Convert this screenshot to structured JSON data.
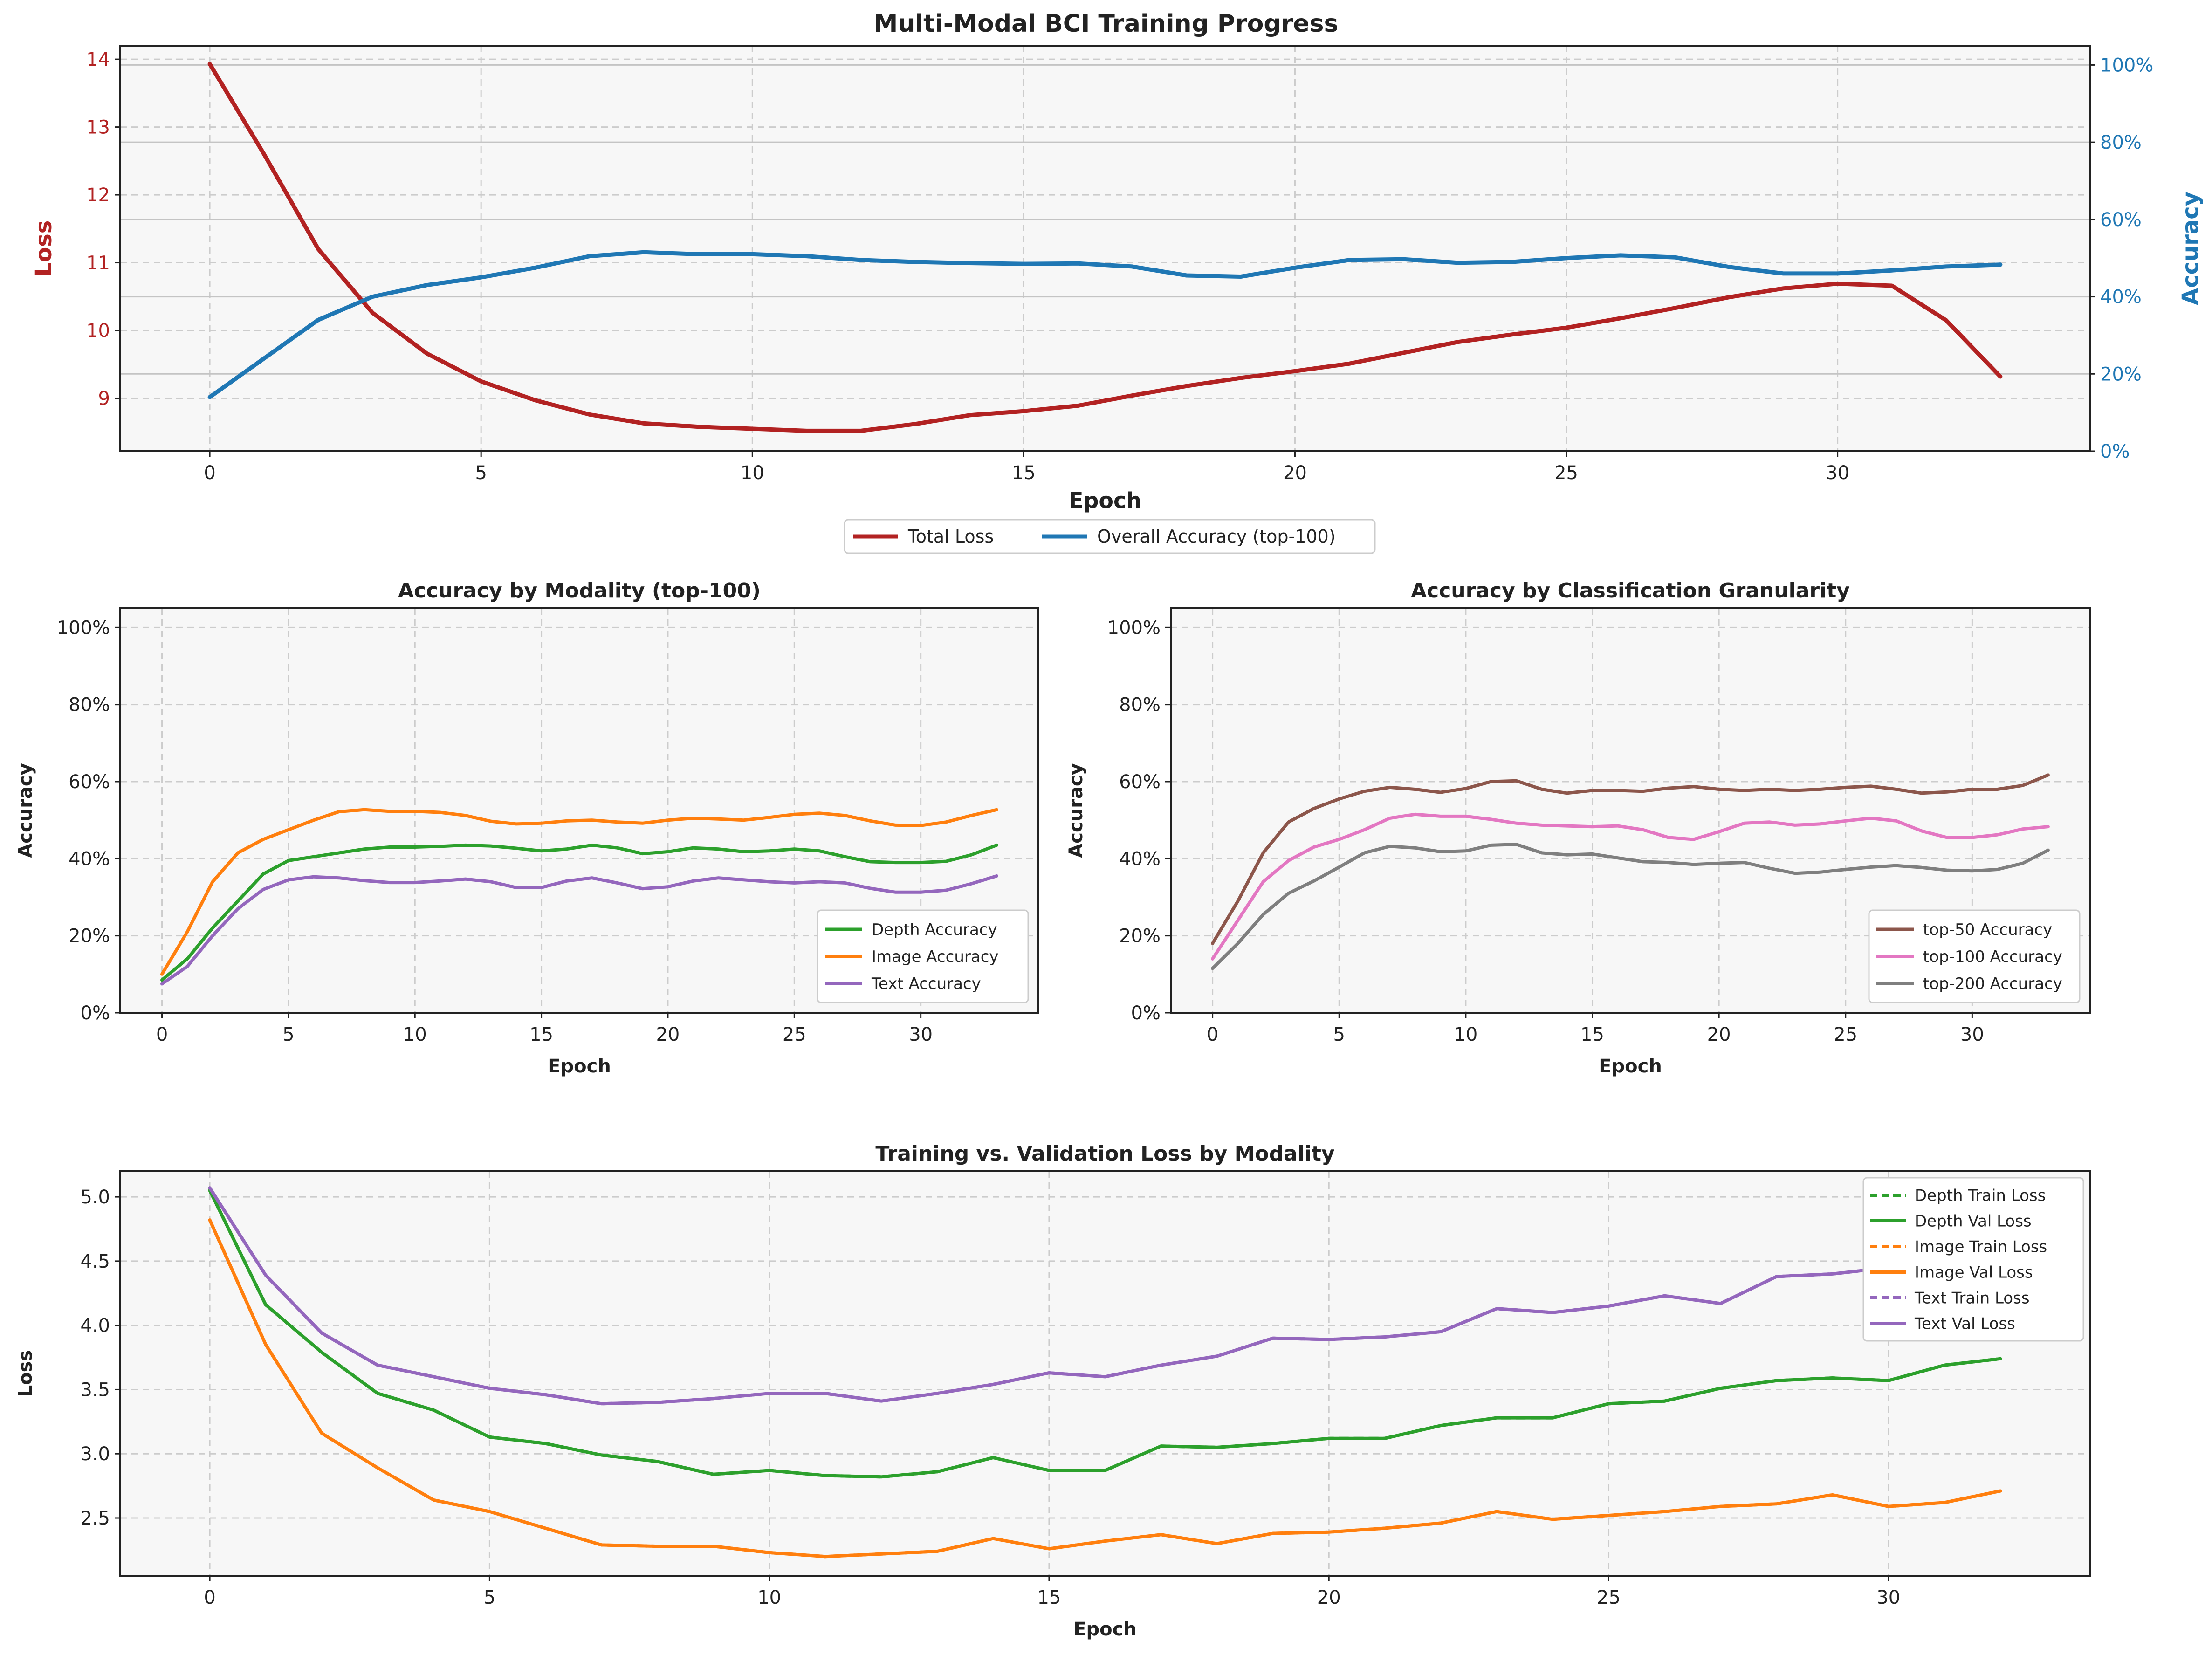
{
  "figure_title": "Multi-Modal BCI Training Progress",
  "colors": {
    "loss": "#b22222",
    "accuracy": "#1f77b4",
    "depth": "#2ca02c",
    "image": "#ff7f0e",
    "text": "#9467bd",
    "top50": "#8c564b",
    "top100": "#e377c2",
    "top200": "#7f7f7f",
    "panel_bg": "#f7f7f7",
    "grid": "#cccccc"
  },
  "chart_data": [
    {
      "type": "line",
      "title": "Multi-Modal BCI Training Progress",
      "xlabel": "Epoch",
      "ylabel_left": "Loss",
      "ylabel_right": "Accuracy",
      "xlim": [
        -1.65,
        34.65
      ],
      "ylim_left": [
        8.22,
        14.2
      ],
      "ylim_right": [
        0,
        1.05
      ],
      "x_ticks": [
        "0",
        "5",
        "10",
        "15",
        "20",
        "25",
        "30"
      ],
      "y_ticks_left": [
        "9",
        "10",
        "11",
        "12",
        "13",
        "14"
      ],
      "y_ticks_right": [
        "0%",
        "20%",
        "40%",
        "60%",
        "80%",
        "100%"
      ],
      "grid": true,
      "legend_position": "below-center",
      "legend_columns": 2,
      "x": [
        0,
        1,
        2,
        3,
        4,
        5,
        6,
        7,
        8,
        9,
        10,
        11,
        12,
        13,
        14,
        15,
        16,
        17,
        18,
        19,
        20,
        21,
        22,
        23,
        24,
        25,
        26,
        27,
        28,
        29,
        30,
        31,
        32,
        33
      ],
      "series": [
        {
          "name": "Total Loss",
          "axis": "left",
          "color": "#b22222",
          "values": [
            13.93,
            12.6,
            11.2,
            10.26,
            9.66,
            9.25,
            8.97,
            8.76,
            8.63,
            8.58,
            8.55,
            8.52,
            8.52,
            8.62,
            8.75,
            8.81,
            8.89,
            9.04,
            9.18,
            9.3,
            9.4,
            9.51,
            9.67,
            9.83,
            9.94,
            10.04,
            10.18,
            10.33,
            10.49,
            10.62,
            10.69,
            10.66,
            10.15,
            9.32
          ]
        },
        {
          "name": "Overall Accuracy (top-100)",
          "axis": "right",
          "color": "#1f77b4",
          "values": [
            0.14,
            0.24,
            0.34,
            0.4,
            0.43,
            0.45,
            0.475,
            0.505,
            0.515,
            0.51,
            0.51,
            0.505,
            0.495,
            0.49,
            0.487,
            0.485,
            0.486,
            0.478,
            0.455,
            0.452,
            0.475,
            0.495,
            0.497,
            0.488,
            0.49,
            0.5,
            0.507,
            0.502,
            0.477,
            0.46,
            0.46,
            0.468,
            0.478,
            0.483
          ]
        }
      ]
    },
    {
      "type": "line",
      "title": "Accuracy by Modality (top-100)",
      "xlabel": "Epoch",
      "ylabel": "Accuracy",
      "xlim": [
        -1.65,
        34.65
      ],
      "ylim": [
        0,
        1.05
      ],
      "x_ticks": [
        "0",
        "5",
        "10",
        "15",
        "20",
        "25",
        "30"
      ],
      "y_ticks": [
        "0%",
        "20%",
        "40%",
        "60%",
        "80%",
        "100%"
      ],
      "grid": true,
      "legend_position": "lower-right",
      "x": [
        0,
        1,
        2,
        3,
        4,
        5,
        6,
        7,
        8,
        9,
        10,
        11,
        12,
        13,
        14,
        15,
        16,
        17,
        18,
        19,
        20,
        21,
        22,
        23,
        24,
        25,
        26,
        27,
        28,
        29,
        30,
        31,
        32,
        33
      ],
      "series": [
        {
          "name": "Depth Accuracy",
          "color": "#2ca02c",
          "values": [
            0.085,
            0.14,
            0.22,
            0.29,
            0.36,
            0.395,
            0.405,
            0.415,
            0.425,
            0.43,
            0.43,
            0.432,
            0.435,
            0.433,
            0.427,
            0.42,
            0.425,
            0.435,
            0.428,
            0.413,
            0.418,
            0.428,
            0.425,
            0.418,
            0.42,
            0.425,
            0.42,
            0.405,
            0.392,
            0.39,
            0.39,
            0.393,
            0.41,
            0.435
          ]
        },
        {
          "name": "Image Accuracy",
          "color": "#ff7f0e",
          "values": [
            0.1,
            0.21,
            0.34,
            0.415,
            0.45,
            0.475,
            0.5,
            0.522,
            0.527,
            0.523,
            0.523,
            0.52,
            0.512,
            0.497,
            0.49,
            0.492,
            0.498,
            0.5,
            0.495,
            0.492,
            0.5,
            0.505,
            0.503,
            0.5,
            0.507,
            0.515,
            0.518,
            0.512,
            0.498,
            0.487,
            0.486,
            0.495,
            0.512,
            0.527
          ]
        },
        {
          "name": "Text Accuracy",
          "color": "#9467bd",
          "values": [
            0.075,
            0.12,
            0.2,
            0.27,
            0.32,
            0.345,
            0.353,
            0.35,
            0.343,
            0.338,
            0.338,
            0.342,
            0.347,
            0.34,
            0.325,
            0.325,
            0.342,
            0.35,
            0.337,
            0.322,
            0.327,
            0.342,
            0.35,
            0.345,
            0.34,
            0.337,
            0.34,
            0.337,
            0.323,
            0.313,
            0.313,
            0.318,
            0.335,
            0.355
          ]
        }
      ]
    },
    {
      "type": "line",
      "title": "Accuracy by Classification Granularity",
      "xlabel": "Epoch",
      "ylabel": "Accuracy",
      "xlim": [
        -1.65,
        34.65
      ],
      "ylim": [
        0,
        1.05
      ],
      "x_ticks": [
        "0",
        "5",
        "10",
        "15",
        "20",
        "25",
        "30"
      ],
      "y_ticks": [
        "0%",
        "20%",
        "40%",
        "60%",
        "80%",
        "100%"
      ],
      "grid": true,
      "legend_position": "lower-right",
      "x": [
        0,
        1,
        2,
        3,
        4,
        5,
        6,
        7,
        8,
        9,
        10,
        11,
        12,
        13,
        14,
        15,
        16,
        17,
        18,
        19,
        20,
        21,
        22,
        23,
        24,
        25,
        26,
        27,
        28,
        29,
        30,
        31,
        32,
        33
      ],
      "series": [
        {
          "name": "top-50 Accuracy",
          "color": "#8c564b",
          "values": [
            0.18,
            0.29,
            0.415,
            0.495,
            0.53,
            0.555,
            0.575,
            0.585,
            0.58,
            0.572,
            0.582,
            0.6,
            0.602,
            0.58,
            0.57,
            0.577,
            0.577,
            0.575,
            0.583,
            0.587,
            0.58,
            0.577,
            0.58,
            0.577,
            0.58,
            0.585,
            0.588,
            0.58,
            0.57,
            0.573,
            0.58,
            0.58,
            0.59,
            0.617
          ]
        },
        {
          "name": "top-100 Accuracy",
          "color": "#e377c2",
          "values": [
            0.14,
            0.24,
            0.34,
            0.395,
            0.43,
            0.45,
            0.475,
            0.505,
            0.515,
            0.51,
            0.51,
            0.502,
            0.492,
            0.487,
            0.485,
            0.483,
            0.485,
            0.475,
            0.455,
            0.45,
            0.47,
            0.492,
            0.495,
            0.487,
            0.49,
            0.498,
            0.505,
            0.498,
            0.472,
            0.455,
            0.455,
            0.462,
            0.477,
            0.483
          ]
        },
        {
          "name": "top-200 Accuracy",
          "color": "#7f7f7f",
          "values": [
            0.115,
            0.18,
            0.255,
            0.31,
            0.342,
            0.378,
            0.415,
            0.432,
            0.428,
            0.418,
            0.42,
            0.435,
            0.437,
            0.415,
            0.41,
            0.412,
            0.402,
            0.392,
            0.39,
            0.385,
            0.388,
            0.39,
            0.375,
            0.362,
            0.365,
            0.372,
            0.378,
            0.382,
            0.377,
            0.37,
            0.368,
            0.372,
            0.388,
            0.422
          ]
        }
      ]
    },
    {
      "type": "line",
      "title": "Training vs. Validation Loss by Modality",
      "xlabel": "Epoch",
      "ylabel": "Loss",
      "xlim": [
        -1.6,
        33.6
      ],
      "ylim": [
        2.05,
        5.2
      ],
      "x_ticks": [
        "0",
        "5",
        "10",
        "15",
        "20",
        "25",
        "30"
      ],
      "y_ticks": [
        "2.5",
        "3.0",
        "3.5",
        "4.0",
        "4.5",
        "5.0"
      ],
      "grid": true,
      "legend_position": "upper-right",
      "x": [
        0,
        1,
        2,
        3,
        4,
        5,
        6,
        7,
        8,
        9,
        10,
        11,
        12,
        13,
        14,
        15,
        16,
        17,
        18,
        19,
        20,
        21,
        22,
        23,
        24,
        25,
        26,
        27,
        28,
        29,
        30,
        31,
        32
      ],
      "series": [
        {
          "name": "Depth Train Loss",
          "color": "#2ca02c",
          "dashed": true,
          "values": [
            5.05,
            4.16,
            3.79,
            3.47,
            3.34,
            3.13,
            3.08,
            2.99,
            2.94,
            2.84,
            2.87,
            2.83,
            2.82,
            2.86,
            2.97,
            2.87,
            2.87,
            3.06,
            3.05,
            3.08,
            3.12,
            3.12,
            3.22,
            3.28,
            3.28,
            3.39,
            3.41,
            3.51,
            3.57,
            3.59,
            3.57,
            3.69,
            3.74
          ]
        },
        {
          "name": "Depth Val Loss",
          "color": "#2ca02c",
          "dashed": false,
          "values": [
            5.05,
            4.16,
            3.79,
            3.47,
            3.34,
            3.13,
            3.08,
            2.99,
            2.94,
            2.84,
            2.87,
            2.83,
            2.82,
            2.86,
            2.97,
            2.87,
            2.87,
            3.06,
            3.05,
            3.08,
            3.12,
            3.12,
            3.22,
            3.28,
            3.28,
            3.39,
            3.41,
            3.51,
            3.57,
            3.59,
            3.57,
            3.69,
            3.74
          ]
        },
        {
          "name": "Image Train Loss",
          "color": "#ff7f0e",
          "dashed": true,
          "values": [
            4.82,
            3.85,
            3.16,
            2.89,
            2.64,
            2.55,
            2.42,
            2.29,
            2.28,
            2.28,
            2.23,
            2.2,
            2.22,
            2.24,
            2.34,
            2.26,
            2.32,
            2.37,
            2.3,
            2.38,
            2.39,
            2.42,
            2.46,
            2.55,
            2.49,
            2.52,
            2.55,
            2.59,
            2.61,
            2.68,
            2.59,
            2.62,
            2.71
          ]
        },
        {
          "name": "Image Val Loss",
          "color": "#ff7f0e",
          "dashed": false,
          "values": [
            4.82,
            3.85,
            3.16,
            2.89,
            2.64,
            2.55,
            2.42,
            2.29,
            2.28,
            2.28,
            2.23,
            2.2,
            2.22,
            2.24,
            2.34,
            2.26,
            2.32,
            2.37,
            2.3,
            2.38,
            2.39,
            2.42,
            2.46,
            2.55,
            2.49,
            2.52,
            2.55,
            2.59,
            2.61,
            2.68,
            2.59,
            2.62,
            2.71
          ]
        },
        {
          "name": "Text Train Loss",
          "color": "#9467bd",
          "dashed": true,
          "values": [
            5.07,
            4.39,
            3.94,
            3.69,
            3.6,
            3.51,
            3.46,
            3.39,
            3.4,
            3.43,
            3.47,
            3.47,
            3.41,
            3.47,
            3.54,
            3.63,
            3.6,
            3.69,
            3.76,
            3.9,
            3.89,
            3.91,
            3.95,
            4.13,
            4.1,
            4.15,
            4.23,
            4.17,
            4.38,
            4.4,
            4.45,
            4.57,
            4.5
          ]
        },
        {
          "name": "Text Val Loss",
          "color": "#9467bd",
          "dashed": false,
          "values": [
            5.07,
            4.39,
            3.94,
            3.69,
            3.6,
            3.51,
            3.46,
            3.39,
            3.4,
            3.43,
            3.47,
            3.47,
            3.41,
            3.47,
            3.54,
            3.63,
            3.6,
            3.69,
            3.76,
            3.9,
            3.89,
            3.91,
            3.95,
            4.13,
            4.1,
            4.15,
            4.23,
            4.17,
            4.38,
            4.4,
            4.45,
            4.57,
            4.5
          ]
        }
      ]
    }
  ]
}
